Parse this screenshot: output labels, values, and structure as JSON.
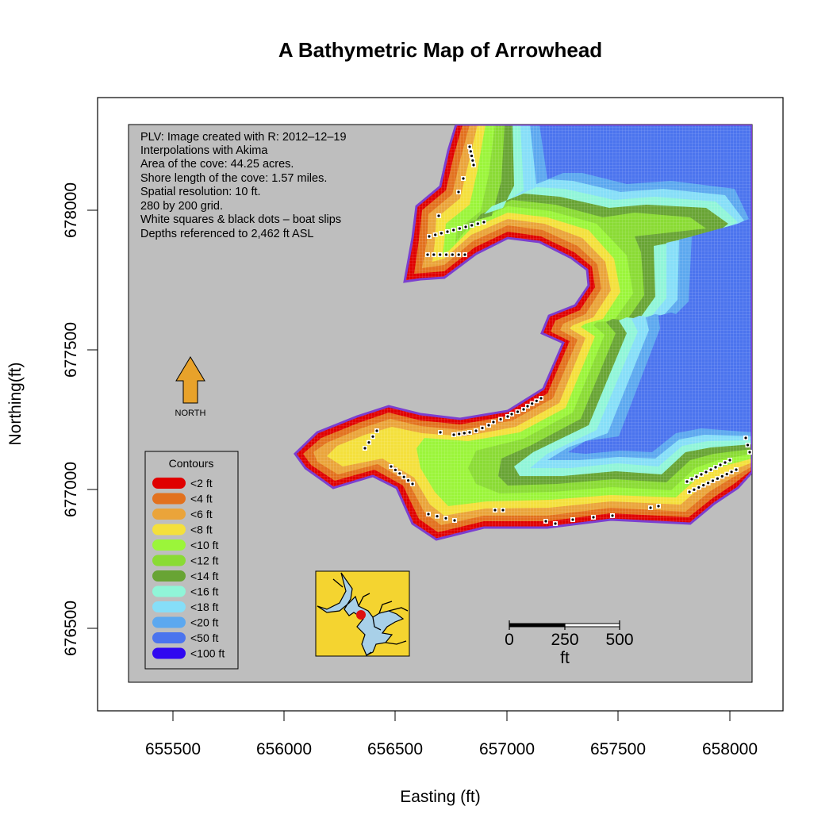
{
  "title": "A Bathymetric Map of  Arrowhead",
  "axes": {
    "x_label": "Easting (ft)",
    "y_label": "Northing(ft)",
    "x_ticks": [
      "655500",
      "656000",
      "656500",
      "657000",
      "657500",
      "658000"
    ],
    "y_ticks": [
      "678000",
      "677500",
      "677000",
      "676500"
    ]
  },
  "info_lines": [
    "PLV: Image created with R: 2012–12–19",
    "Interpolations with Akima",
    "Area of the cove: 44.25 acres.",
    "Shore length of the cove: 1.57 miles.",
    "Spatial resolution: 10 ft.",
    "280 by 200 grid.",
    "White squares & black dots – boat slips",
    "Depths referenced to 2,462 ft ASL"
  ],
  "north_arrow": {
    "label": "NORTH",
    "icon": "north-arrow-icon",
    "color": "#E8A22A"
  },
  "legend": {
    "title": "Contours",
    "items": [
      {
        "label": "<2 ft",
        "color": "#E00000"
      },
      {
        "label": "<4 ft",
        "color": "#E2711E"
      },
      {
        "label": "<6 ft",
        "color": "#EAA43A"
      },
      {
        "label": "<8 ft",
        "color": "#F4E03C"
      },
      {
        "label": "<10 ft",
        "color": "#9BF53A"
      },
      {
        "label": "<12 ft",
        "color": "#8ADB34"
      },
      {
        "label": "<14 ft",
        "color": "#68A434"
      },
      {
        "label": "<16 ft",
        "color": "#90F5D8"
      },
      {
        "label": "<18 ft",
        "color": "#86DEF8"
      },
      {
        "label": "<20 ft",
        "color": "#5CA8EF"
      },
      {
        "label": "<50 ft",
        "color": "#4B74EE"
      },
      {
        "label": "<100 ft",
        "color": "#3008F0"
      }
    ]
  },
  "scale_bar": {
    "labels": [
      "0",
      "250",
      "500"
    ],
    "unit": "ft"
  },
  "colors": {
    "land": "#BEBEBE",
    "shoreline": "#7B3FD0",
    "inset_land": "#F4D430",
    "inset_water": "#A8D0E8",
    "location_marker": "#DD1111"
  }
}
